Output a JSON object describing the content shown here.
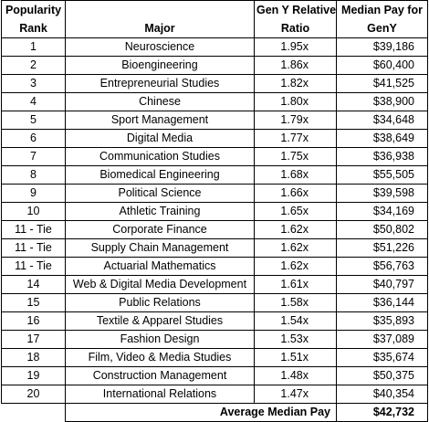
{
  "headers": {
    "rank_line1": "Popularity",
    "rank_line2": "Rank",
    "major": "Major",
    "ratio_line1": "Gen Y Relative",
    "ratio_line2": "Ratio",
    "pay_line1": "Median Pay for",
    "pay_line2": "GenY"
  },
  "rows": [
    {
      "rank": "1",
      "major": "Neuroscience",
      "ratio": "1.95x",
      "pay": "$39,186"
    },
    {
      "rank": "2",
      "major": "Bioengineering",
      "ratio": "1.86x",
      "pay": "$60,400"
    },
    {
      "rank": "3",
      "major": "Entrepreneurial Studies",
      "ratio": "1.82x",
      "pay": "$41,525"
    },
    {
      "rank": "4",
      "major": "Chinese",
      "ratio": "1.80x",
      "pay": "$38,900"
    },
    {
      "rank": "5",
      "major": "Sport Management",
      "ratio": "1.79x",
      "pay": "$34,648"
    },
    {
      "rank": "6",
      "major": "Digital Media",
      "ratio": "1.77x",
      "pay": "$38,649"
    },
    {
      "rank": "7",
      "major": "Communication Studies",
      "ratio": "1.75x",
      "pay": "$36,938"
    },
    {
      "rank": "8",
      "major": "Biomedical Engineering",
      "ratio": "1.68x",
      "pay": "$55,505"
    },
    {
      "rank": "9",
      "major": "Political Science",
      "ratio": "1.66x",
      "pay": "$39,598"
    },
    {
      "rank": "10",
      "major": "Athletic Training",
      "ratio": "1.65x",
      "pay": "$34,169"
    },
    {
      "rank": "11 - Tie",
      "major": "Corporate Finance",
      "ratio": "1.62x",
      "pay": "$50,802"
    },
    {
      "rank": "11 - Tie",
      "major": "Supply Chain Management",
      "ratio": "1.62x",
      "pay": "$51,226"
    },
    {
      "rank": "11 - Tie",
      "major": "Actuarial Mathematics",
      "ratio": "1.62x",
      "pay": "$56,763"
    },
    {
      "rank": "14",
      "major": "Web & Digital Media Development",
      "ratio": "1.61x",
      "pay": "$40,797"
    },
    {
      "rank": "15",
      "major": "Public Relations",
      "ratio": "1.58x",
      "pay": "$36,144"
    },
    {
      "rank": "16",
      "major": "Textile & Apparel Studies",
      "ratio": "1.54x",
      "pay": "$35,893"
    },
    {
      "rank": "17",
      "major": "Fashion Design",
      "ratio": "1.53x",
      "pay": "$37,089"
    },
    {
      "rank": "18",
      "major": "Film, Video & Media Studies",
      "ratio": "1.51x",
      "pay": "$35,674"
    },
    {
      "rank": "19",
      "major": "Construction Management",
      "ratio": "1.48x",
      "pay": "$50,375"
    },
    {
      "rank": "20",
      "major": "International Relations",
      "ratio": "1.47x",
      "pay": "$40,354"
    }
  ],
  "footer": {
    "label": "Average Median Pay",
    "value": "$42,732"
  }
}
